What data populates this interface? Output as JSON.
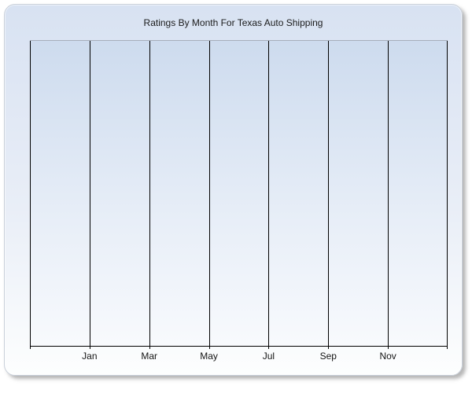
{
  "panel": {
    "title": "Ratings By Month For Texas Auto Shipping",
    "colors": {
      "panel_top": "#d8e2f2",
      "panel_bottom": "#fdfefe",
      "panel_border": "#c9d0da",
      "plot_top": "#cddbee",
      "plot_bottom": "#f8fafd",
      "plot_top_border": "#a6aeba",
      "gridline": "#000000",
      "title_text": "#1b1b1b",
      "label_text": "#141414"
    }
  },
  "chart_data": {
    "type": "line",
    "title": "Ratings By Month For Texas Auto Shipping",
    "xlabel": "",
    "ylabel": "",
    "x_tick_labels": [
      "Jan",
      "Mar",
      "May",
      "Jul",
      "Sep",
      "Nov"
    ],
    "x_axis": {
      "vertical_gridlines": 8,
      "gridline_interval_months": 2,
      "labels_centered_on_gridlines": [
        1,
        2,
        3,
        4,
        5,
        6
      ],
      "ticks_below_axis": true
    },
    "y_axis": {
      "tick_labels": [],
      "horizontal_gridlines": false
    },
    "series": [],
    "legend": null,
    "plot_is_empty": true
  }
}
